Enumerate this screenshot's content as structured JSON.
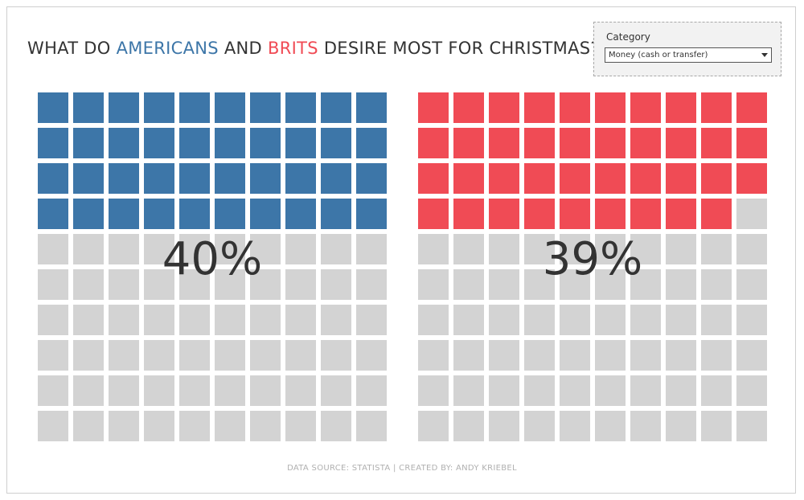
{
  "title": {
    "pre": "WHAT DO ",
    "us_word": "AMERICANS",
    "mid": " AND ",
    "uk_word": "BRITS",
    "post": " DESIRE MOST FOR CHRISTMAS?"
  },
  "filter": {
    "label": "Category",
    "selected": "Money (cash or transfer)"
  },
  "colors": {
    "us": "#3d76a8",
    "uk": "#f04b55",
    "empty": "#d3d3d3"
  },
  "chart_data": [
    {
      "type": "waffle",
      "name": "Americans",
      "value": 40,
      "total": 100,
      "label": "40%"
    },
    {
      "type": "waffle",
      "name": "Brits",
      "value": 39,
      "total": 100,
      "label": "39%"
    }
  ],
  "footer": "DATA SOURCE: STATISTA  |  CREATED BY: ANDY KRIEBEL"
}
